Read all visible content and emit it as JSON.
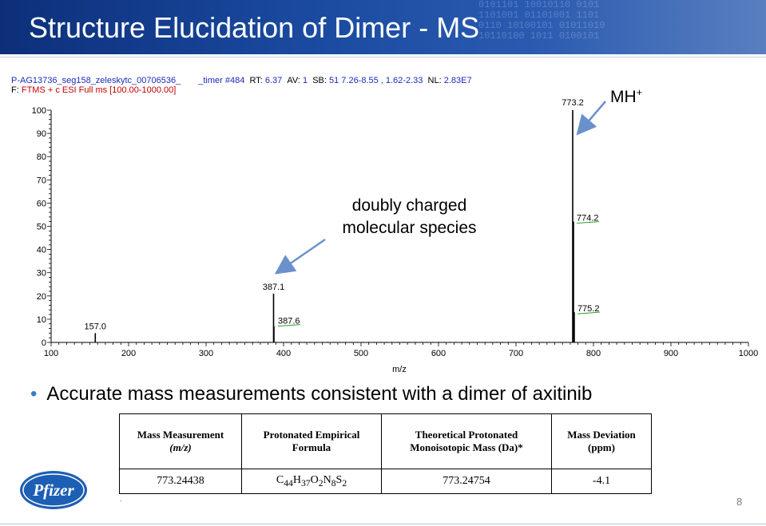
{
  "slide": {
    "title": "Structure Elucidation of Dimer - MS",
    "bullet": "Accurate mass measurements consistent with a dimer of axitinib",
    "slide_number": "8",
    "logo_text": "Pfizer"
  },
  "spectrum_header": {
    "line1_filename": "P-AG13736_seg158_zeleskytc_00706536_",
    "line1_timer_label": "_timer #484",
    "rt_label": "RT:",
    "rt_value": "6.37",
    "av_label": "AV:",
    "av_value": "1",
    "sb_label": "SB:",
    "sb_value": "51  7.26-8.55 , 1.62-2.33",
    "nl_label": "NL:",
    "nl_value": "2.83E7",
    "line2_prefix": "F:",
    "line2_filter": "FTMS + c ESI Full ms [100.00-1000.00]"
  },
  "annotations": {
    "mh": "MH",
    "mh_sup": "+",
    "doubly_line1": "doubly charged",
    "doubly_line2": "molecular species"
  },
  "chart_data": {
    "type": "bar",
    "xlabel": "m/z",
    "ylabel": "",
    "xlim": [
      100,
      1000
    ],
    "ylim": [
      0,
      100
    ],
    "x_ticks": [
      100,
      200,
      300,
      400,
      500,
      600,
      700,
      800,
      900,
      1000
    ],
    "y_ticks": [
      0,
      10,
      20,
      30,
      40,
      50,
      60,
      70,
      80,
      90,
      100
    ],
    "peaks": [
      {
        "mz": 157.0,
        "intensity": 4,
        "label": "157.0"
      },
      {
        "mz": 387.1,
        "intensity": 21,
        "label": "387.1"
      },
      {
        "mz": 387.6,
        "intensity": 7,
        "label": "387.6"
      },
      {
        "mz": 773.2,
        "intensity": 100,
        "label": "773.2"
      },
      {
        "mz": 774.2,
        "intensity": 52,
        "label": "774.2"
      },
      {
        "mz": 775.2,
        "intensity": 13,
        "label": "775.2"
      }
    ],
    "colors": {
      "axis": "#000000",
      "peak": "#000000",
      "label_underline": "#2e9b2e",
      "arrow": "#6a91cc"
    }
  },
  "table": {
    "headers": [
      {
        "line1": "Mass Measurement",
        "line2": "(m/z)"
      },
      {
        "line1": "Protonated Empirical",
        "line2": "Formula"
      },
      {
        "line1": "Theoretical Protonated",
        "line2": "Monoisotopic Mass (Da)*"
      },
      {
        "line1": "Mass Deviation",
        "line2": "(ppm)"
      }
    ],
    "rows": [
      {
        "mass": "773.24438",
        "formula_parts": [
          "C",
          "44",
          "H",
          "37",
          "O",
          "2",
          "N",
          "8",
          "S",
          "2"
        ],
        "theoretical": "773.24754",
        "deviation": "-4.1"
      }
    ]
  }
}
